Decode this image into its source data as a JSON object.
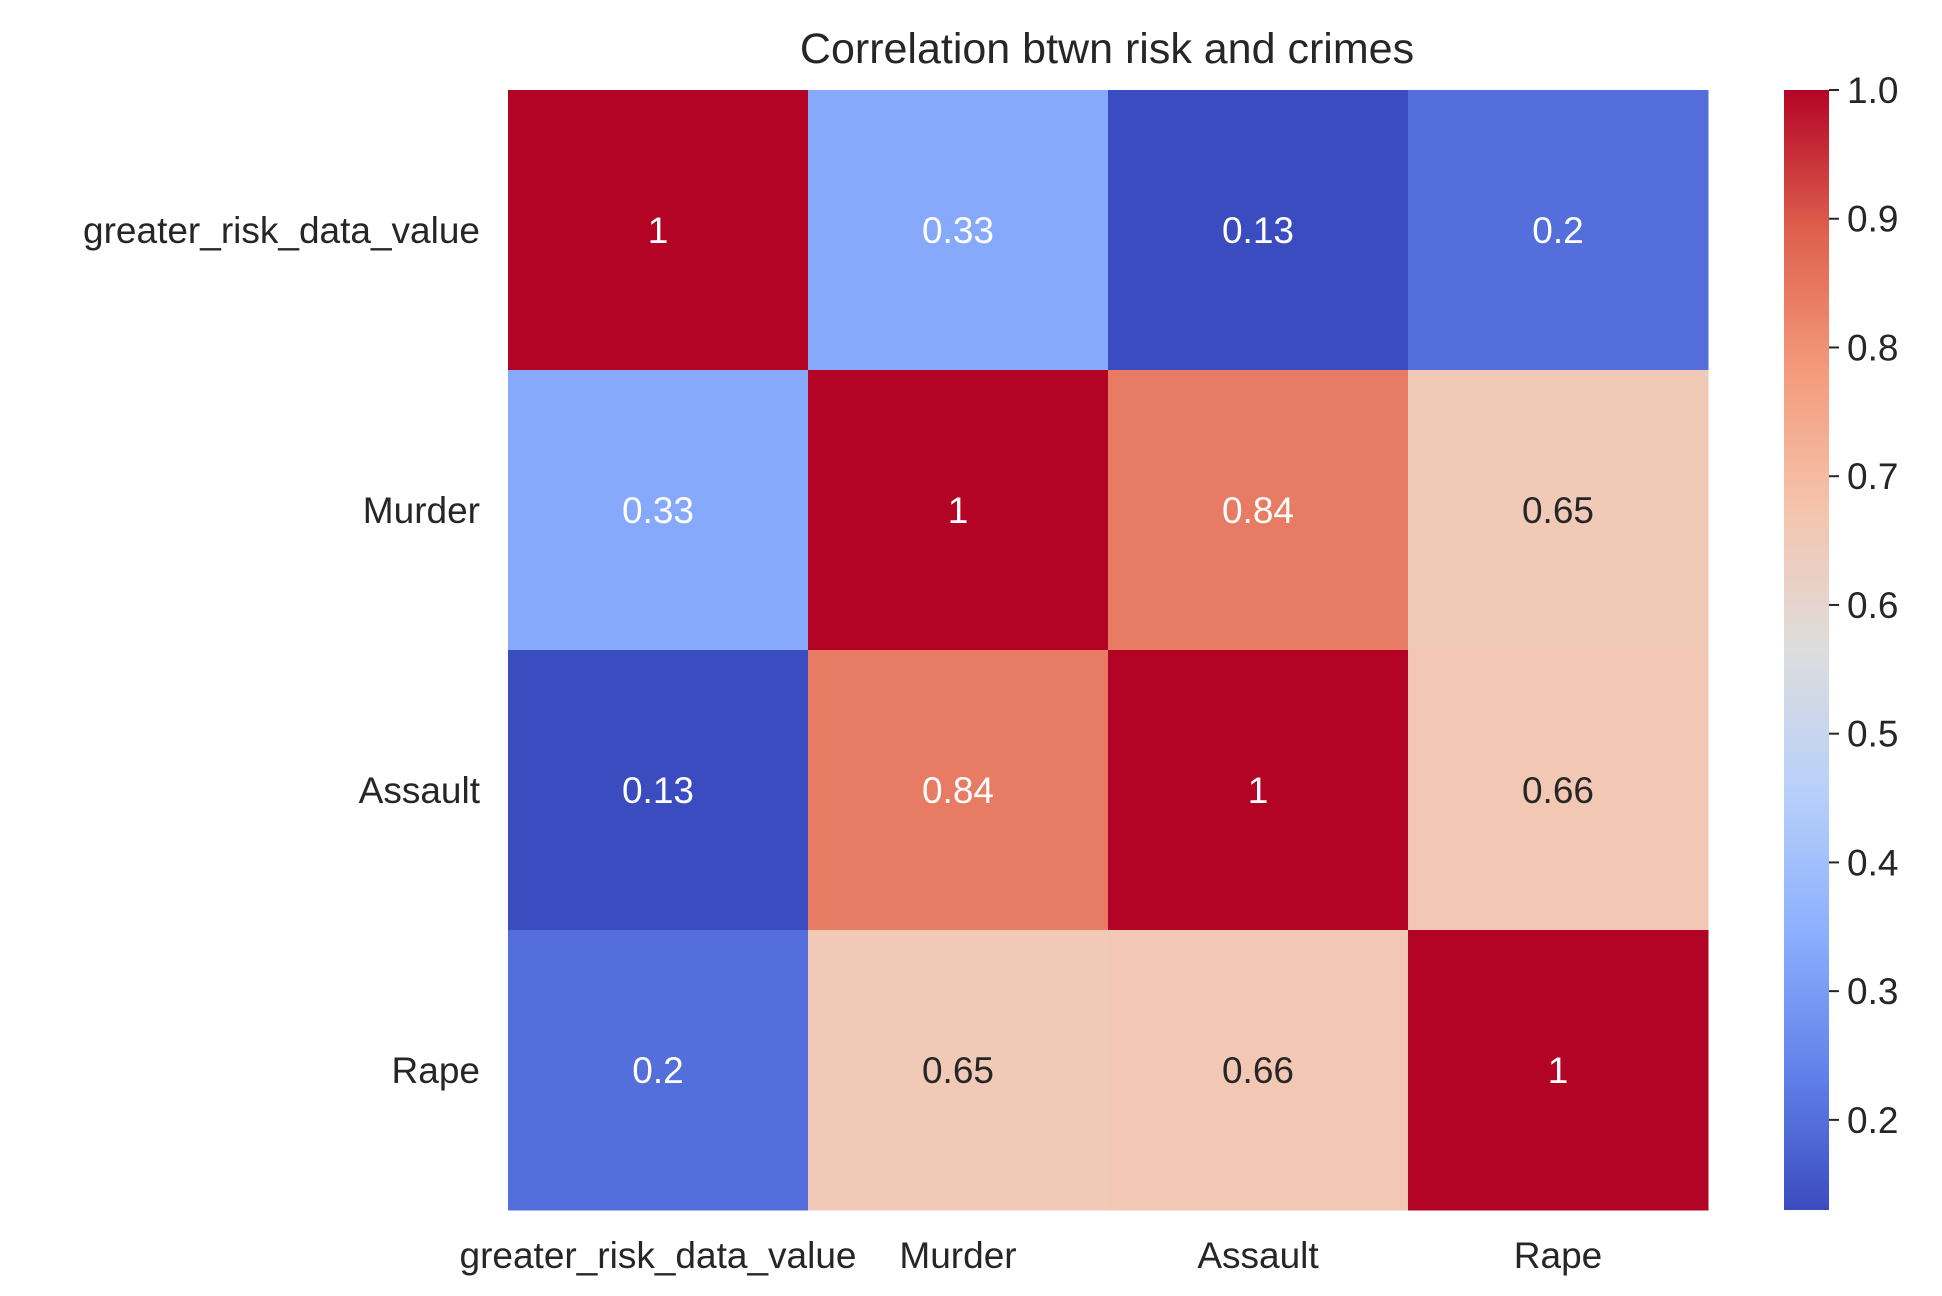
{
  "chart_data": {
    "type": "heatmap",
    "title": "Correlation btwn risk and crimes",
    "xlabel": "",
    "ylabel": "",
    "x_categories": [
      "greater_risk_data_value",
      "Murder",
      "Assault",
      "Rape"
    ],
    "y_categories": [
      "greater_risk_data_value",
      "Murder",
      "Assault",
      "Rape"
    ],
    "matrix": [
      [
        1,
        0.33,
        0.13,
        0.2
      ],
      [
        0.33,
        1,
        0.84,
        0.65
      ],
      [
        0.13,
        0.84,
        1,
        0.66
      ],
      [
        0.2,
        0.65,
        0.66,
        1
      ]
    ],
    "annotations": [
      [
        "1",
        "0.33",
        "0.13",
        "0.2"
      ],
      [
        "0.33",
        "1",
        "0.84",
        "0.65"
      ],
      [
        "0.13",
        "0.84",
        "1",
        "0.66"
      ],
      [
        "0.2",
        "0.65",
        "0.66",
        "1"
      ]
    ],
    "colormap": "coolwarm",
    "colorbar": {
      "vmin": 0.13,
      "vmax": 1.0,
      "ticks": [
        "0.2",
        "0.3",
        "0.4",
        "0.5",
        "0.6",
        "0.7",
        "0.8",
        "0.9",
        "1.0"
      ],
      "tick_values": [
        0.2,
        0.3,
        0.4,
        0.5,
        0.6,
        0.7,
        0.8,
        0.9,
        1.0
      ],
      "location": "right"
    },
    "colors": {
      "text_dark": "#262626",
      "annotation_light": "#ffffff",
      "annotation_dark": "#262626"
    }
  }
}
